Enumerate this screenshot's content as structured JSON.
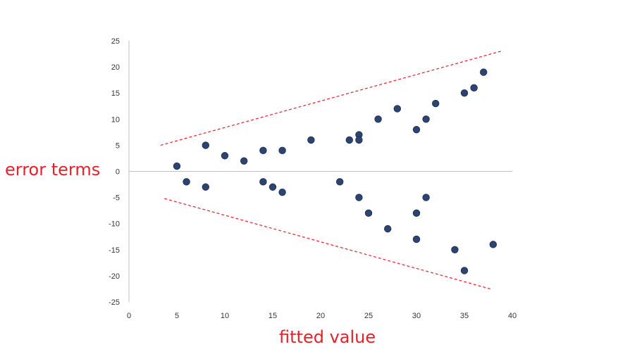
{
  "chart_data": {
    "type": "scatter",
    "title": "",
    "xlabel": "fitted value",
    "ylabel": "error terms",
    "xlim": [
      0,
      40
    ],
    "ylim": [
      -25,
      25
    ],
    "x_ticks": [
      "0",
      "5",
      "10",
      "15",
      "20",
      "25",
      "30",
      "35",
      "40"
    ],
    "y_ticks": [
      "25",
      "20",
      "15",
      "10",
      "5",
      "0",
      "-5",
      "-10",
      "-15",
      "-20",
      "-25"
    ],
    "grid": false,
    "zero_line": true,
    "series": [
      {
        "color": "#2e4470",
        "points": [
          {
            "x": 5,
            "y": 1
          },
          {
            "x": 6,
            "y": -2
          },
          {
            "x": 8,
            "y": 5
          },
          {
            "x": 8,
            "y": -3
          },
          {
            "x": 10,
            "y": 3
          },
          {
            "x": 12,
            "y": 2
          },
          {
            "x": 14,
            "y": 4
          },
          {
            "x": 14,
            "y": -2
          },
          {
            "x": 15,
            "y": -3
          },
          {
            "x": 16,
            "y": 4
          },
          {
            "x": 16,
            "y": -4
          },
          {
            "x": 19,
            "y": 6
          },
          {
            "x": 22,
            "y": -2
          },
          {
            "x": 23,
            "y": 6
          },
          {
            "x": 24,
            "y": 7
          },
          {
            "x": 24,
            "y": 6
          },
          {
            "x": 24,
            "y": -5
          },
          {
            "x": 25,
            "y": -8
          },
          {
            "x": 26,
            "y": 10
          },
          {
            "x": 27,
            "y": -11
          },
          {
            "x": 28,
            "y": 12
          },
          {
            "x": 30,
            "y": 8
          },
          {
            "x": 30,
            "y": -8
          },
          {
            "x": 30,
            "y": -13
          },
          {
            "x": 31,
            "y": 10
          },
          {
            "x": 31,
            "y": -5
          },
          {
            "x": 32,
            "y": 13
          },
          {
            "x": 34,
            "y": -15
          },
          {
            "x": 35,
            "y": 15
          },
          {
            "x": 35,
            "y": -19
          },
          {
            "x": 36,
            "y": 16
          },
          {
            "x": 37,
            "y": 19
          },
          {
            "x": 38,
            "y": -14
          }
        ]
      }
    ],
    "guide_lines": [
      {
        "color": "#e8202a",
        "style": "dashed",
        "points": [
          {
            "x": 3.3,
            "y": 5
          },
          {
            "x": 38.8,
            "y": 23
          }
        ]
      },
      {
        "color": "#e8202a",
        "style": "dashed",
        "points": [
          {
            "x": 3.7,
            "y": -5.2
          },
          {
            "x": 37.7,
            "y": -22.5
          }
        ]
      }
    ]
  }
}
